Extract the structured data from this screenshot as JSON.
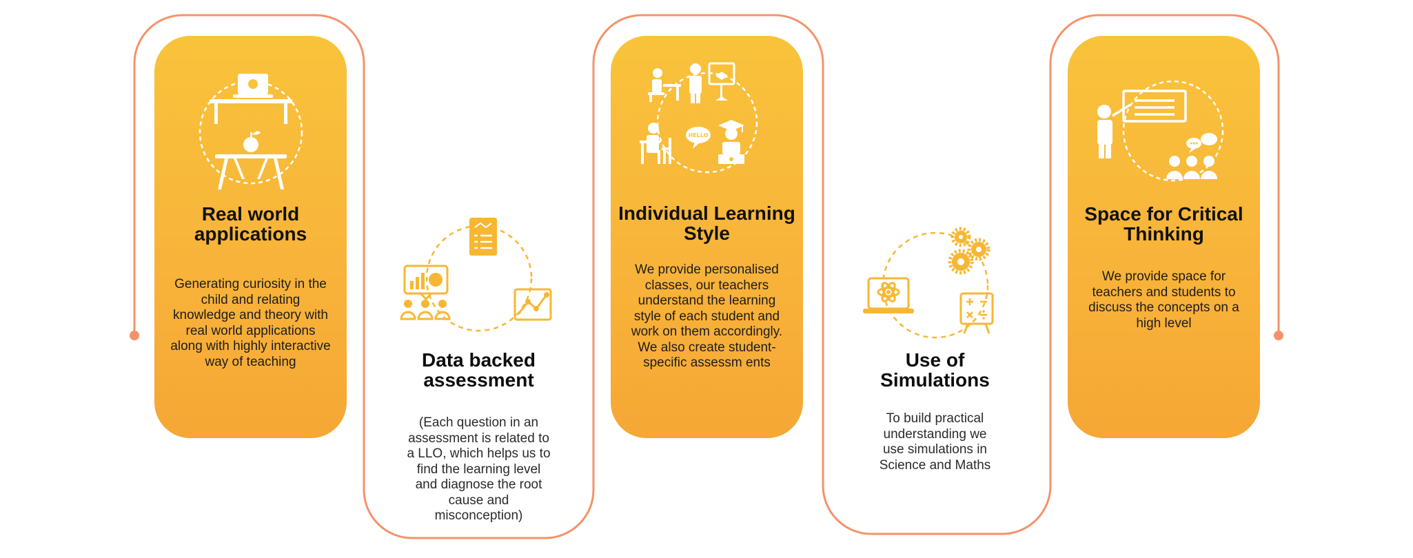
{
  "colors": {
    "card_top": "#f9c33b",
    "card_bottom": "#f6a735",
    "connector": "#f4926a",
    "icon_on_card": "#ffffff",
    "icon_on_white": "#f7b733",
    "title": "#111111",
    "text": "#1d1d1d"
  },
  "cards": [
    {
      "icon": "classroom-apple-icon",
      "title": "Real world applications",
      "desc": "Generating curiosity in the child and relating knowledge and theory with real world applications along with highly interactive way of teaching"
    },
    {
      "icon": "data-assessment-icon",
      "title": "Data backed assessment",
      "desc": "(Each question in an assessment is related to a LLO, which helps us to find the learning level and diagnose the root cause and misconception)"
    },
    {
      "icon": "individual-learning-icon",
      "title": "Individual Learning Style",
      "desc": "We provide personalised classes, our teachers understand the learning style of each student and work on them accordingly. We also create student-specific assessm ents",
      "bubble_text": "HELLO"
    },
    {
      "icon": "simulation-laptop-icon",
      "title": "Use of Simulations",
      "desc": "To build practical understanding we use simulations in Science and Maths"
    },
    {
      "icon": "critical-thinking-icon",
      "title": "Space for Critical Thinking",
      "desc": "We provide space for teachers and students to discuss the concepts on a high level"
    }
  ]
}
